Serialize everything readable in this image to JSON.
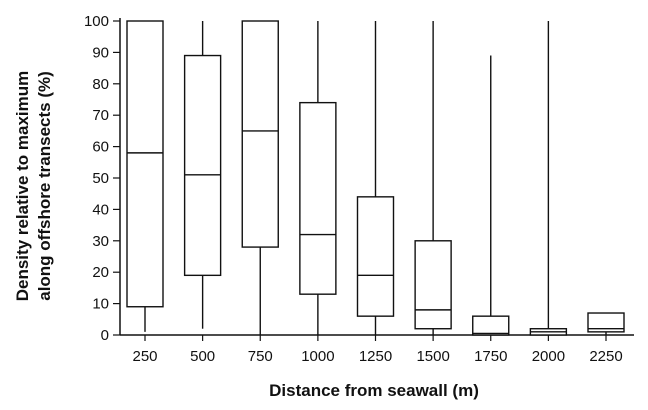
{
  "chart_data": {
    "type": "box",
    "title": "",
    "xlabel": "Distance from seawall (m)",
    "ylabel_lines": [
      "Density relative to maximum",
      "along offshore transects (%)"
    ],
    "ylim": [
      0,
      100
    ],
    "yticks": [
      0,
      10,
      20,
      30,
      40,
      50,
      60,
      70,
      80,
      90,
      100
    ],
    "grid": false,
    "categories": [
      "250",
      "500",
      "750",
      "1000",
      "1250",
      "1500",
      "1750",
      "2000",
      "2250"
    ],
    "boxes": [
      {
        "category": "250",
        "min": 1,
        "q1": 9,
        "median": 58,
        "q3": 100,
        "max": 100
      },
      {
        "category": "500",
        "min": 2,
        "q1": 19,
        "median": 51,
        "q3": 89,
        "max": 100
      },
      {
        "category": "750",
        "min": 0,
        "q1": 28,
        "median": 65,
        "q3": 100,
        "max": 100
      },
      {
        "category": "1000",
        "min": 0,
        "q1": 13,
        "median": 32,
        "q3": 74,
        "max": 100
      },
      {
        "category": "1250",
        "min": 0,
        "q1": 6,
        "median": 19,
        "q3": 44,
        "max": 100
      },
      {
        "category": "1500",
        "min": 0,
        "q1": 2,
        "median": 8,
        "q3": 30,
        "max": 100
      },
      {
        "category": "1750",
        "min": 0,
        "q1": 0,
        "median": 0.5,
        "q3": 6,
        "max": 89
      },
      {
        "category": "2000",
        "min": 0,
        "q1": 0,
        "median": 1,
        "q3": 2,
        "max": 100
      },
      {
        "category": "2250",
        "min": 0,
        "q1": 1,
        "median": 2,
        "q3": 7,
        "max": 7
      }
    ]
  }
}
